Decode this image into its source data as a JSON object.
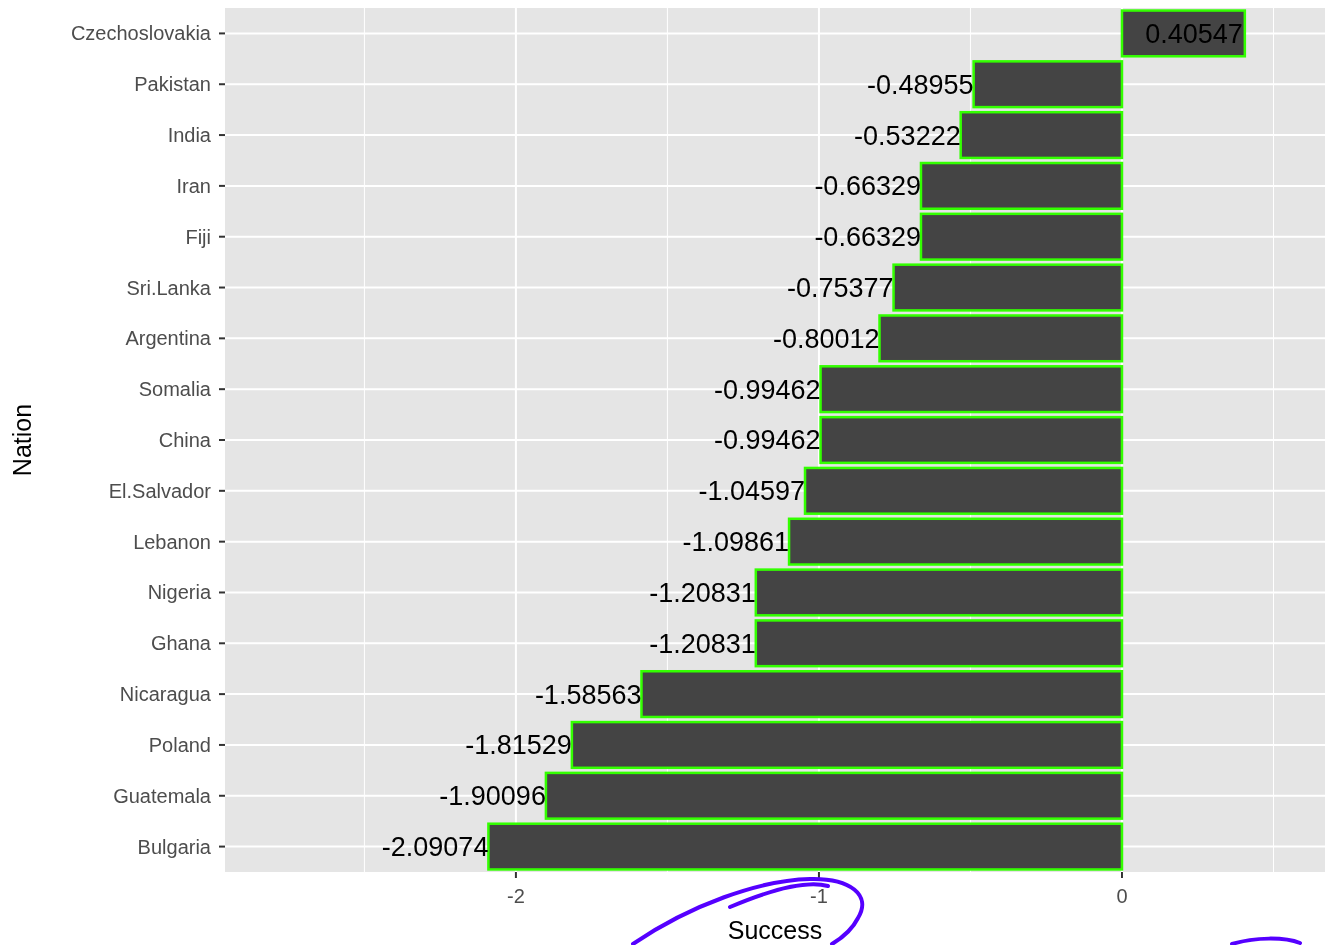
{
  "chart_data": {
    "type": "bar",
    "orientation": "horizontal",
    "xlabel": "Success",
    "ylabel": "Nation",
    "categories": [
      "Czechoslovakia",
      "Pakistan",
      "India",
      "Iran",
      "Fiji",
      "Sri.Lanka",
      "Argentina",
      "Somalia",
      "China",
      "El.Salvador",
      "Lebanon",
      "Nigeria",
      "Ghana",
      "Nicaragua",
      "Poland",
      "Guatemala",
      "Bulgaria"
    ],
    "values": [
      0.40547,
      -0.48955,
      -0.53222,
      -0.66329,
      -0.66329,
      -0.75377,
      -0.80012,
      -0.99462,
      -0.99462,
      -1.04597,
      -1.09861,
      -1.20831,
      -1.20831,
      -1.58563,
      -1.81529,
      -1.90096,
      -2.09074
    ],
    "color": "#444444",
    "xlim": [
      -2.96,
      0.67
    ],
    "xticks": [
      -2,
      -1,
      0
    ],
    "grid": true,
    "data_labels": true
  }
}
